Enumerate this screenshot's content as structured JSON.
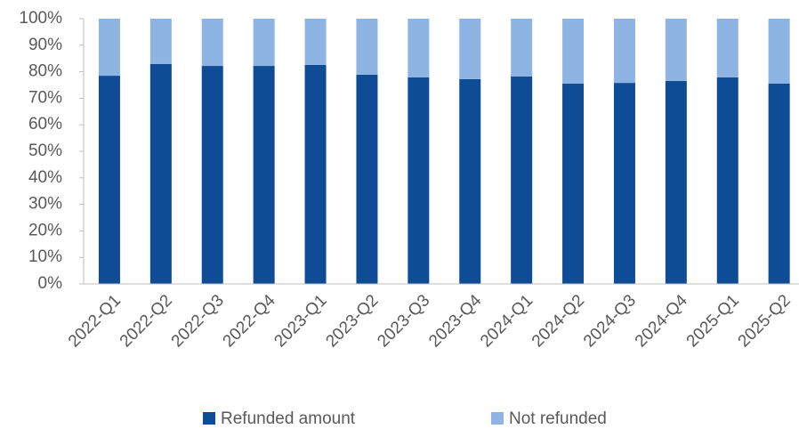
{
  "chart_data": {
    "type": "stacked_bar_100",
    "categories": [
      "2022-Q1",
      "2022-Q2",
      "2022-Q3",
      "2022-Q4",
      "2023-Q1",
      "2023-Q2",
      "2023-Q3",
      "2023-Q4",
      "2024-Q1",
      "2024-Q2",
      "2024-Q3",
      "2024-Q4",
      "2025-Q1",
      "2025-Q2"
    ],
    "series": [
      {
        "name": "Refunded amount",
        "color": "#0f4c96",
        "values": [
          78.5,
          82.9,
          82.2,
          82.2,
          82.6,
          78.9,
          77.9,
          77.2,
          78.2,
          75.5,
          75.8,
          76.5,
          77.9,
          75.5
        ]
      },
      {
        "name": "Not refunded",
        "color": "#8db4e2",
        "values": [
          21.5,
          17.1,
          17.8,
          17.8,
          17.4,
          21.1,
          22.1,
          22.8,
          21.8,
          24.5,
          24.2,
          23.5,
          22.1,
          24.5
        ]
      }
    ],
    "ylim": [
      0,
      100
    ],
    "yticks": [
      {
        "value": 0,
        "label": "0%"
      },
      {
        "value": 10,
        "label": "10%"
      },
      {
        "value": 20,
        "label": "20%"
      },
      {
        "value": 30,
        "label": "30%"
      },
      {
        "value": 40,
        "label": "40%"
      },
      {
        "value": 50,
        "label": "50%"
      },
      {
        "value": 60,
        "label": "60%"
      },
      {
        "value": 70,
        "label": "70%"
      },
      {
        "value": 80,
        "label": "80%"
      },
      {
        "value": 90,
        "label": "90%"
      },
      {
        "value": 100,
        "label": "100%"
      }
    ],
    "grid": false,
    "legend": "bottom"
  }
}
